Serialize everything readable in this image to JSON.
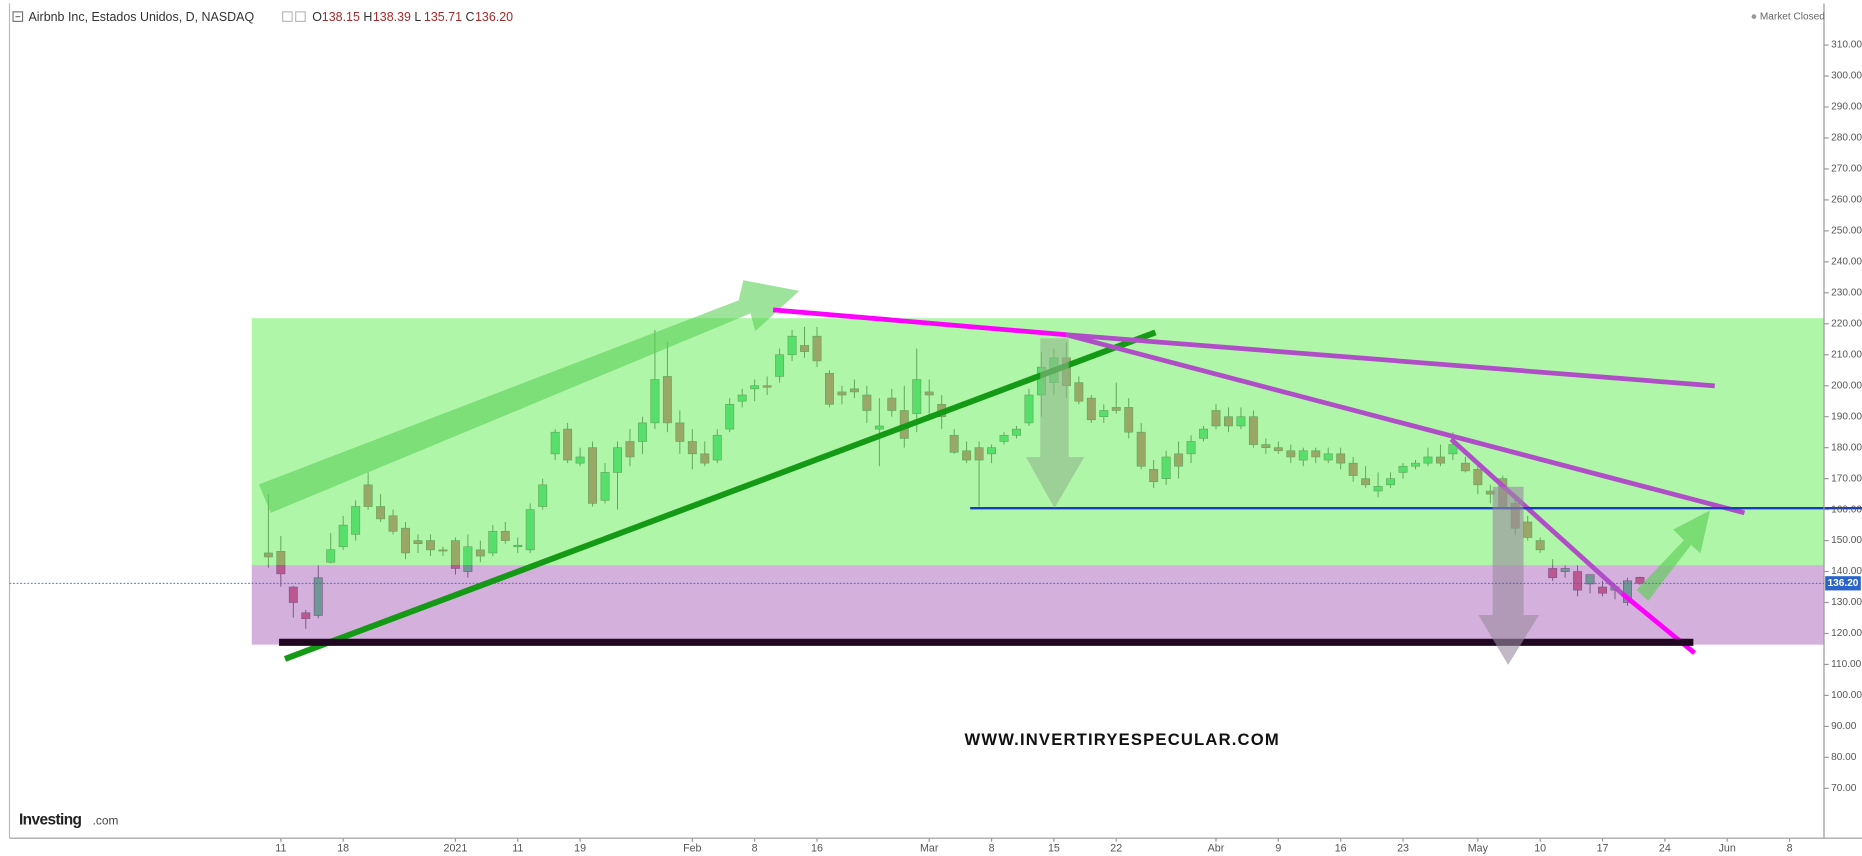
{
  "chart_data": {
    "type": "candlestick",
    "title": "Airbnb Inc, Estados Unidos, D, NASDAQ",
    "quote_labels": [
      "O",
      "H",
      "L",
      "C"
    ],
    "quote_values": [
      "138.15",
      "138.39",
      "135.71",
      "136.20"
    ],
    "status": "Market Closed",
    "watermark": "WWW.INVERTIRYESPECULAR.COM",
    "brand": {
      "name": "Investing",
      "domain": ".com"
    },
    "up_color": "#1ec864",
    "down_color": "#c83c5a",
    "categories": [
      null,
      "11",
      null,
      null,
      null,
      null,
      "18",
      null,
      null,
      null,
      null,
      null,
      null,
      null,
      null,
      "2021",
      null,
      null,
      null,
      null,
      "11",
      null,
      null,
      null,
      null,
      "19",
      null,
      null,
      null,
      null,
      null,
      null,
      null,
      null,
      "Feb",
      null,
      null,
      null,
      null,
      "8",
      null,
      null,
      null,
      null,
      "16",
      null,
      null,
      null,
      null,
      null,
      null,
      null,
      null,
      "Mar",
      null,
      null,
      null,
      null,
      "8",
      null,
      null,
      null,
      null,
      "15",
      null,
      null,
      null,
      null,
      "22",
      null,
      null,
      null,
      null,
      null,
      null,
      null,
      "Abr",
      null,
      null,
      null,
      null,
      "9",
      null,
      null,
      null,
      null,
      "16",
      null,
      null,
      null,
      null,
      "23",
      null,
      null,
      null,
      null,
      null,
      "May",
      null,
      null,
      null,
      null,
      "10",
      null,
      null,
      null,
      null,
      "17",
      null,
      null,
      null,
      null,
      "24",
      null,
      null,
      null,
      null,
      "Jun",
      null,
      null,
      null,
      null,
      "8"
    ],
    "open": [
      146,
      146.55,
      135,
      126.69,
      125.83,
      143,
      148,
      152,
      168,
      161,
      158,
      154,
      150,
      150,
      147,
      150,
      140,
      147,
      146,
      153,
      148,
      147,
      161,
      178,
      186,
      175,
      180,
      163,
      172,
      182,
      182,
      188,
      203,
      188,
      182,
      178,
      176,
      186,
      195,
      199,
      200,
      203,
      210,
      213,
      216,
      204,
      198,
      199,
      197,
      186,
      196,
      192,
      191,
      198,
      194,
      184,
      179,
      180,
      178,
      182,
      184,
      188,
      197,
      201,
      209,
      201,
      196,
      190,
      193,
      193,
      185,
      173,
      170,
      178,
      178,
      183,
      192,
      190,
      187,
      190,
      181,
      180,
      179,
      176,
      179,
      176,
      178,
      175,
      170,
      166,
      168,
      172,
      174,
      175,
      177,
      178,
      175,
      173,
      166,
      170,
      162,
      156,
      150,
      141,
      140,
      140,
      136,
      135,
      134,
      130,
      138.15,
      null,
      null,
      null,
      null,
      null,
      null,
      null,
      null,
      null,
      null,
      null,
      null
    ],
    "high": [
      165,
      151.5,
      135.3,
      127.6,
      142,
      152.45,
      158,
      163,
      172,
      165,
      160,
      156,
      152,
      152,
      148,
      151,
      152,
      150,
      155,
      156,
      151,
      162,
      170,
      186,
      188,
      180,
      182,
      175,
      182,
      186,
      190,
      218,
      214,
      192,
      186,
      182,
      186,
      196,
      199,
      202,
      203,
      212,
      218,
      219,
      219,
      205,
      200,
      202,
      200,
      196,
      199,
      200,
      212,
      202,
      197,
      186,
      182,
      182,
      181,
      185,
      187,
      199,
      211,
      212,
      214,
      203,
      197,
      194,
      201,
      196,
      188,
      176,
      179,
      182,
      184,
      187,
      194,
      193,
      193,
      192,
      183,
      182,
      181,
      180,
      180,
      180,
      180,
      177,
      174,
      172,
      172,
      175,
      176,
      180,
      181,
      185,
      177,
      175,
      168,
      171,
      164,
      158,
      151,
      144,
      142,
      142,
      139,
      137,
      136,
      138,
      138.39,
      null,
      null,
      null,
      null,
      null,
      null,
      null,
      null,
      null,
      null,
      null,
      null
    ],
    "low": [
      141.25,
      135.1,
      125.16,
      121.5,
      124.91,
      142.67,
      147,
      150,
      160,
      156,
      152,
      144,
      146,
      145,
      145,
      139,
      138,
      143,
      145,
      149,
      146,
      146,
      160,
      176,
      175,
      174,
      161,
      162,
      160,
      174,
      178,
      186,
      185,
      178,
      173,
      174,
      175,
      185,
      193,
      195,
      197,
      201,
      208,
      209,
      206,
      193,
      194,
      196,
      188,
      174,
      190,
      180,
      185,
      189,
      186,
      178,
      175,
      161,
      175,
      181,
      183,
      187,
      190,
      197,
      196,
      194,
      188,
      188,
      191,
      183,
      173,
      167,
      168,
      170,
      175,
      182,
      186,
      185,
      186,
      180,
      178,
      178,
      175,
      174,
      175,
      175,
      173,
      169,
      167,
      164,
      167,
      170,
      173,
      174,
      174,
      176,
      172,
      165,
      162,
      160,
      152,
      150,
      146,
      137,
      138,
      132,
      133,
      132,
      131,
      129,
      135.71,
      null,
      null,
      null,
      null,
      null,
      null,
      null,
      null,
      null,
      null,
      null,
      null
    ],
    "close": [
      144.71,
      139.25,
      130,
      124.8,
      137.99,
      147.05,
      155,
      161,
      161,
      157,
      153,
      146,
      149,
      147,
      146.8,
      141,
      148,
      145,
      153,
      150,
      148.5,
      160,
      168,
      185,
      176,
      177,
      162,
      172,
      180,
      177,
      188,
      202,
      188,
      182,
      178,
      175,
      184,
      194,
      197,
      200,
      199.5,
      210,
      216,
      211,
      208,
      194,
      197,
      198,
      192,
      187,
      192,
      183,
      202,
      197,
      190,
      178.5,
      176,
      176,
      180,
      184,
      186,
      197,
      206,
      209,
      200,
      195,
      189,
      192,
      192,
      185,
      174,
      169,
      177,
      174,
      182,
      186,
      187,
      187,
      190,
      181,
      180,
      179,
      177,
      179,
      177,
      178,
      175,
      171,
      168,
      167.5,
      170,
      174,
      175,
      177,
      175,
      181,
      172.5,
      168,
      165,
      161,
      154,
      151,
      147,
      138,
      141,
      134,
      139,
      133,
      135,
      137,
      136.2,
      null,
      null,
      null,
      null,
      null,
      null,
      null,
      null,
      null,
      null,
      null,
      null
    ],
    "last_price": {
      "value": 136.2,
      "label": "136.20"
    },
    "ylim": [
      53.9,
      323.4
    ],
    "yticks": [
      {
        "value": 310,
        "label": "310.00"
      },
      {
        "value": 300,
        "label": "300.00"
      },
      {
        "value": 290,
        "label": "290.00"
      },
      {
        "value": 280,
        "label": "280.00"
      },
      {
        "value": 270,
        "label": "270.00"
      },
      {
        "value": 260,
        "label": "260.00"
      },
      {
        "value": 250,
        "label": "250.00"
      },
      {
        "value": 240,
        "label": "240.00"
      },
      {
        "value": 230,
        "label": "230.00"
      },
      {
        "value": 220,
        "label": "220.00"
      },
      {
        "value": 210,
        "label": "210.00"
      },
      {
        "value": 200,
        "label": "200.00"
      },
      {
        "value": 190,
        "label": "190.00"
      },
      {
        "value": 180,
        "label": "180.00"
      },
      {
        "value": 170,
        "label": "170.00"
      },
      {
        "value": 160,
        "label": "160.00"
      },
      {
        "value": 150,
        "label": "150.00"
      },
      {
        "value": 140,
        "label": "140.00"
      },
      {
        "value": 130,
        "label": "130.00"
      },
      {
        "value": 120,
        "label": "120.00"
      },
      {
        "value": 110,
        "label": "110.00"
      },
      {
        "value": 100,
        "label": "100.00"
      },
      {
        "value": 90,
        "label": "90.00"
      },
      {
        "value": 80,
        "label": "80.00"
      },
      {
        "value": 70,
        "label": "70.00"
      }
    ]
  }
}
